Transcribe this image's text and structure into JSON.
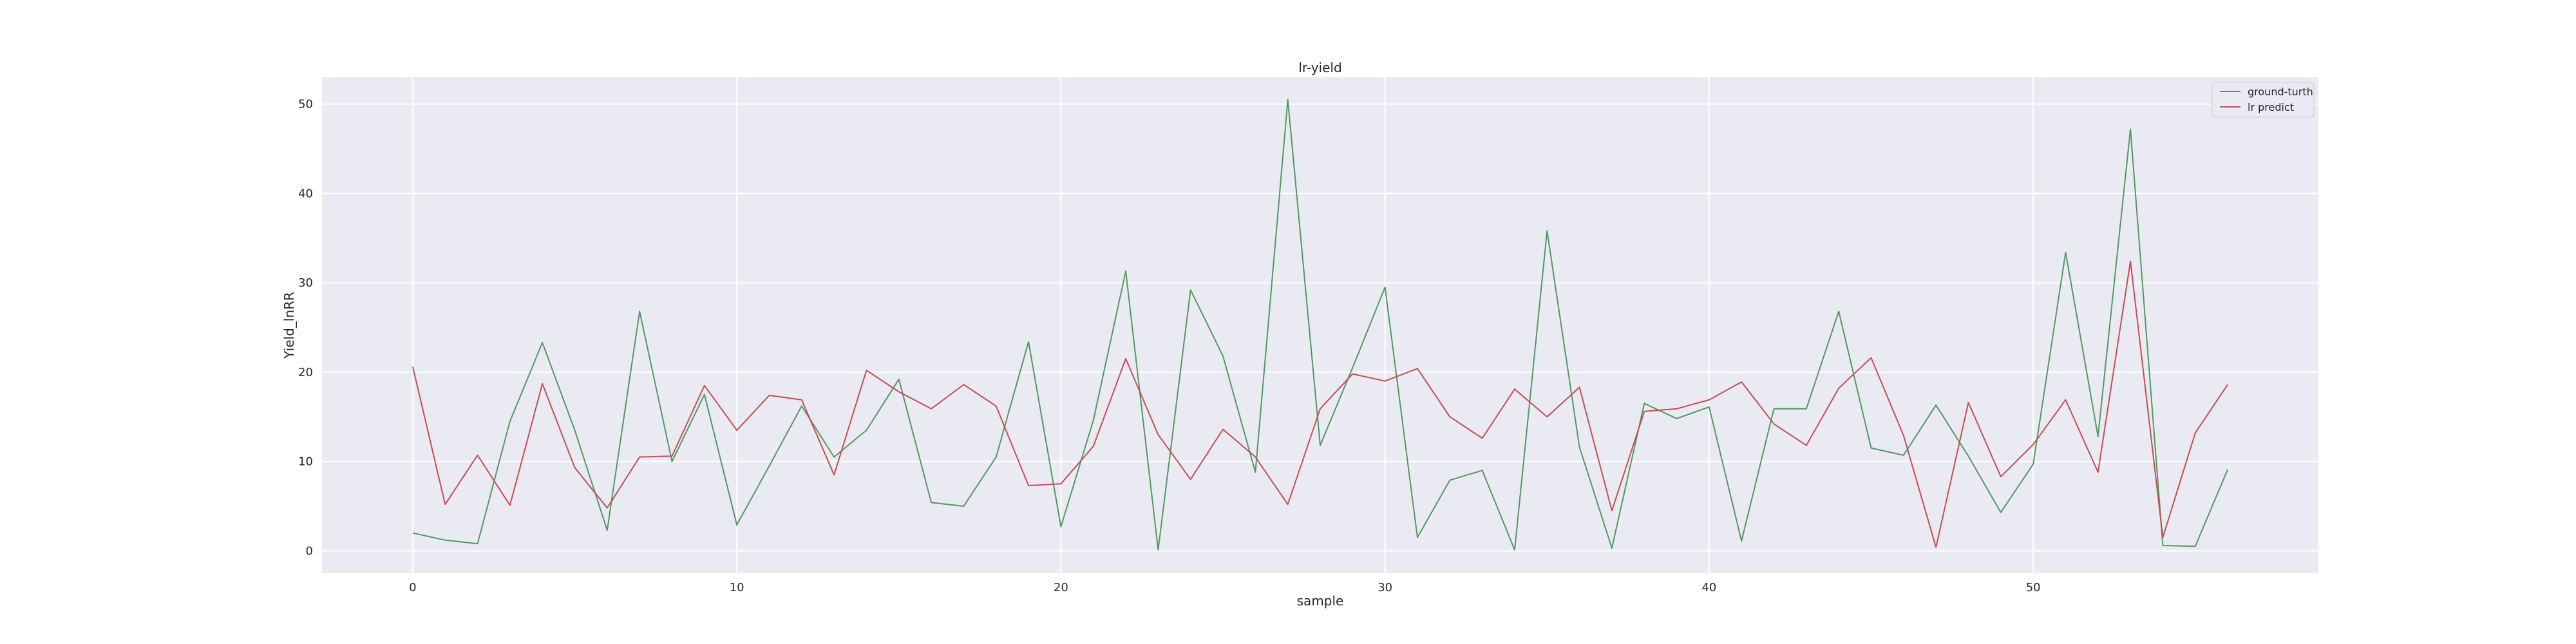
{
  "chart_data": {
    "type": "line",
    "title": "lr-yield",
    "xlabel": "sample",
    "ylabel": "Yield_lnRR",
    "xlim": [
      -2.8,
      58.8
    ],
    "ylim": [
      -2.5,
      53.0
    ],
    "xticks": [
      0,
      10,
      20,
      30,
      40,
      50
    ],
    "yticks": [
      0,
      10,
      20,
      30,
      40,
      50
    ],
    "grid": true,
    "legend_position": "top-right",
    "series": [
      {
        "name": "ground-turth",
        "color": "#4f9a5f",
        "values": [
          2.0,
          1.2,
          0.8,
          14.5,
          23.3,
          13.5,
          2.3,
          26.8,
          10.0,
          17.5,
          2.9,
          9.5,
          16.2,
          10.5,
          13.5,
          19.2,
          5.4,
          5.0,
          10.5,
          23.4,
          2.7,
          14.6,
          31.3,
          0.1,
          29.2,
          21.8,
          8.8,
          50.5,
          11.8,
          20.5,
          29.5,
          1.5,
          7.9,
          9.0,
          0.1,
          35.8,
          11.6,
          0.3,
          16.5,
          14.8,
          16.1,
          1.1,
          15.9,
          15.9,
          26.8,
          11.5,
          10.7,
          16.3,
          10.6,
          4.3,
          9.7,
          33.4,
          12.8,
          47.2,
          0.6,
          0.5,
          9.1
        ]
      },
      {
        "name": "lr predict",
        "color": "#c44e52",
        "values": [
          20.6,
          5.2,
          10.7,
          5.1,
          18.7,
          9.3,
          4.8,
          10.5,
          10.6,
          18.5,
          13.5,
          17.4,
          16.9,
          8.5,
          20.2,
          17.8,
          15.9,
          18.6,
          16.2,
          7.3,
          7.5,
          11.7,
          21.5,
          13.0,
          8.0,
          13.6,
          10.5,
          5.2,
          15.9,
          19.8,
          19.0,
          20.4,
          15.0,
          12.6,
          18.1,
          15.0,
          18.3,
          4.5,
          15.6,
          15.9,
          16.9,
          18.9,
          14.2,
          11.8,
          18.2,
          21.6,
          12.9,
          0.4,
          16.6,
          8.3,
          11.9,
          16.9,
          8.8,
          32.4,
          1.5,
          13.2,
          18.6
        ]
      }
    ]
  }
}
